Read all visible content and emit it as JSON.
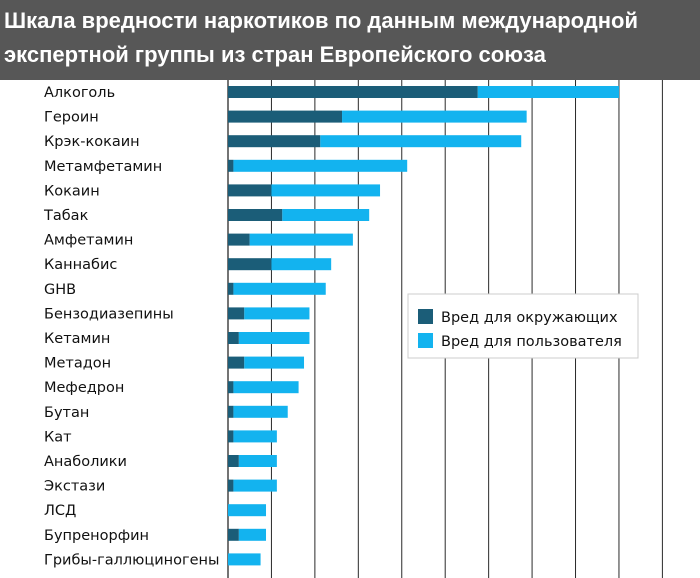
{
  "header": {
    "title_line1": "Шкала вредности наркотиков по данным международной",
    "title_line2": "экспертной группы из стран Европейского союза"
  },
  "colors": {
    "header_bg": "#575757",
    "others": "#1b5d78",
    "users": "#13b3ef",
    "grid": "#2a2a2a"
  },
  "chart_data": {
    "type": "bar",
    "orientation": "horizontal",
    "stacked": true,
    "grid": true,
    "legend_position": "right",
    "categories": [
      "Алкоголь",
      "Героин",
      "Крэк-кокаин",
      "Метамфетамин",
      "Кокаин",
      "Табак",
      "Амфетамин",
      "Каннабис",
      "GHB",
      "Бензодиазепины",
      "Кетамин",
      "Метадон",
      "Мефедрон",
      "Бутан",
      "Кат",
      "Анаболики",
      "Экстази",
      "ЛСД",
      "Бупренорфин",
      "Грибы-галлюциногены"
    ],
    "series": [
      {
        "name": "Вред для окружающих",
        "values": [
          46,
          21,
          17,
          1,
          8,
          10,
          4,
          8,
          1,
          3,
          2,
          3,
          1,
          1,
          1,
          2,
          1,
          0,
          2,
          0
        ]
      },
      {
        "name": "Вред для пользователя",
        "values": [
          26,
          34,
          37,
          32,
          20,
          16,
          19,
          11,
          17,
          12,
          13,
          11,
          12,
          10,
          8,
          7,
          8,
          7,
          5,
          6
        ]
      }
    ],
    "xlim": [
      0,
      85
    ]
  }
}
